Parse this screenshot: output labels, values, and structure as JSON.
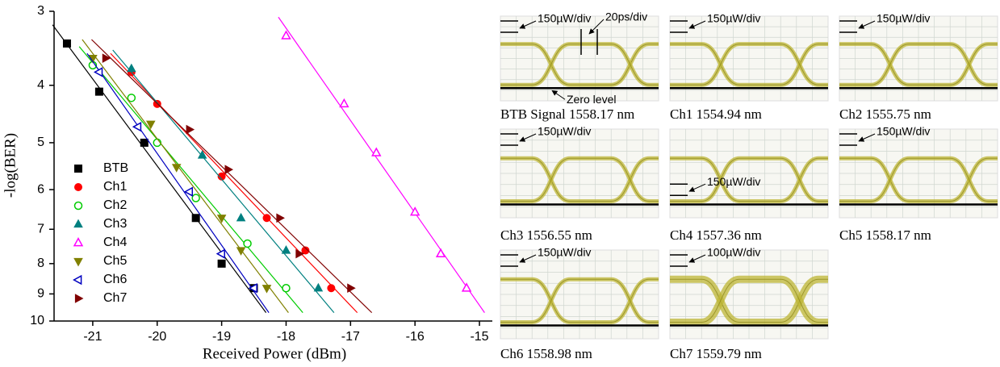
{
  "chart_data": {
    "type": "scatter",
    "x_label": "Received Power (dBm)",
    "y_label": "-log(BER)",
    "xlim": [
      -21.6,
      -14.8
    ],
    "xticks": [
      -21,
      -20,
      -19,
      -18,
      -17,
      -16,
      -15
    ],
    "ylim": [
      3,
      10
    ],
    "yticks": [
      3,
      4,
      5,
      6,
      7,
      8,
      9,
      10
    ],
    "y_scale": "log",
    "y_inverted": true,
    "fit_lines": true,
    "series": [
      {
        "name": "BTB",
        "color": "#000000",
        "marker": "square",
        "x": [
          -21.4,
          -20.9,
          -20.2,
          -19.4,
          -19.0,
          -18.5
        ],
        "values": [
          3.4,
          4.1,
          5.0,
          6.7,
          8.0,
          8.8
        ]
      },
      {
        "name": "Ch1",
        "color": "#ff0000",
        "marker": "circle",
        "x": [
          -20.4,
          -20.0,
          -19.0,
          -18.3,
          -17.7,
          -17.3
        ],
        "values": [
          3.8,
          4.3,
          5.7,
          6.7,
          7.6,
          8.8
        ]
      },
      {
        "name": "Ch2",
        "color": "#00cc00",
        "marker": "circle-open",
        "x": [
          -21.0,
          -20.4,
          -20.0,
          -19.4,
          -18.6,
          -18.0
        ],
        "values": [
          3.7,
          4.2,
          5.0,
          6.2,
          7.4,
          8.8
        ]
      },
      {
        "name": "Ch3",
        "color": "#008080",
        "marker": "triangle-up",
        "x": [
          -20.4,
          -19.3,
          -18.7,
          -18.0,
          -17.5
        ],
        "values": [
          3.75,
          5.25,
          6.7,
          7.6,
          8.8
        ]
      },
      {
        "name": "Ch4",
        "color": "#ff00ff",
        "marker": "triangle-up-open",
        "x": [
          -18.0,
          -17.1,
          -16.6,
          -16.0,
          -15.6,
          -15.2
        ],
        "values": [
          3.3,
          4.3,
          5.2,
          6.55,
          7.7,
          8.8
        ]
      },
      {
        "name": "Ch5",
        "color": "#808000",
        "marker": "triangle-down",
        "x": [
          -21.0,
          -20.1,
          -19.7,
          -19.0,
          -18.7,
          -18.3
        ],
        "values": [
          3.6,
          4.65,
          5.5,
          6.7,
          7.6,
          8.8
        ]
      },
      {
        "name": "Ch6",
        "color": "#0000c0",
        "marker": "triangle-left-open",
        "x": [
          -20.9,
          -20.3,
          -19.5,
          -19.0,
          -18.5
        ],
        "values": [
          3.8,
          4.7,
          6.05,
          7.7,
          8.8
        ]
      },
      {
        "name": "Ch7",
        "color": "#800000",
        "marker": "triangle-right",
        "x": [
          -20.8,
          -19.5,
          -18.9,
          -18.1,
          -17.8,
          -17.0
        ],
        "values": [
          3.6,
          4.75,
          5.55,
          6.7,
          7.7,
          8.8
        ]
      }
    ]
  },
  "eye_diagrams": {
    "time_scale": "20ps/div",
    "zero_label": "Zero level",
    "panels": [
      {
        "caption": "BTB Signal 1558.17 nm",
        "scale": "150µW/div"
      },
      {
        "caption": "Ch1 1554.94 nm",
        "scale": "150µW/div"
      },
      {
        "caption": "Ch2 1555.75 nm",
        "scale": "150µW/div"
      },
      {
        "caption": "Ch3 1556.55 nm",
        "scale": "150µW/div"
      },
      {
        "caption": "Ch4 1557.36 nm",
        "scale": "150µW/div"
      },
      {
        "caption": "Ch5 1558.17 nm",
        "scale": "150µW/div"
      },
      {
        "caption": "Ch6 1558.98 nm",
        "scale": "150µW/div"
      },
      {
        "caption": "Ch7 1559.79 nm",
        "scale": "100µW/div"
      }
    ]
  }
}
